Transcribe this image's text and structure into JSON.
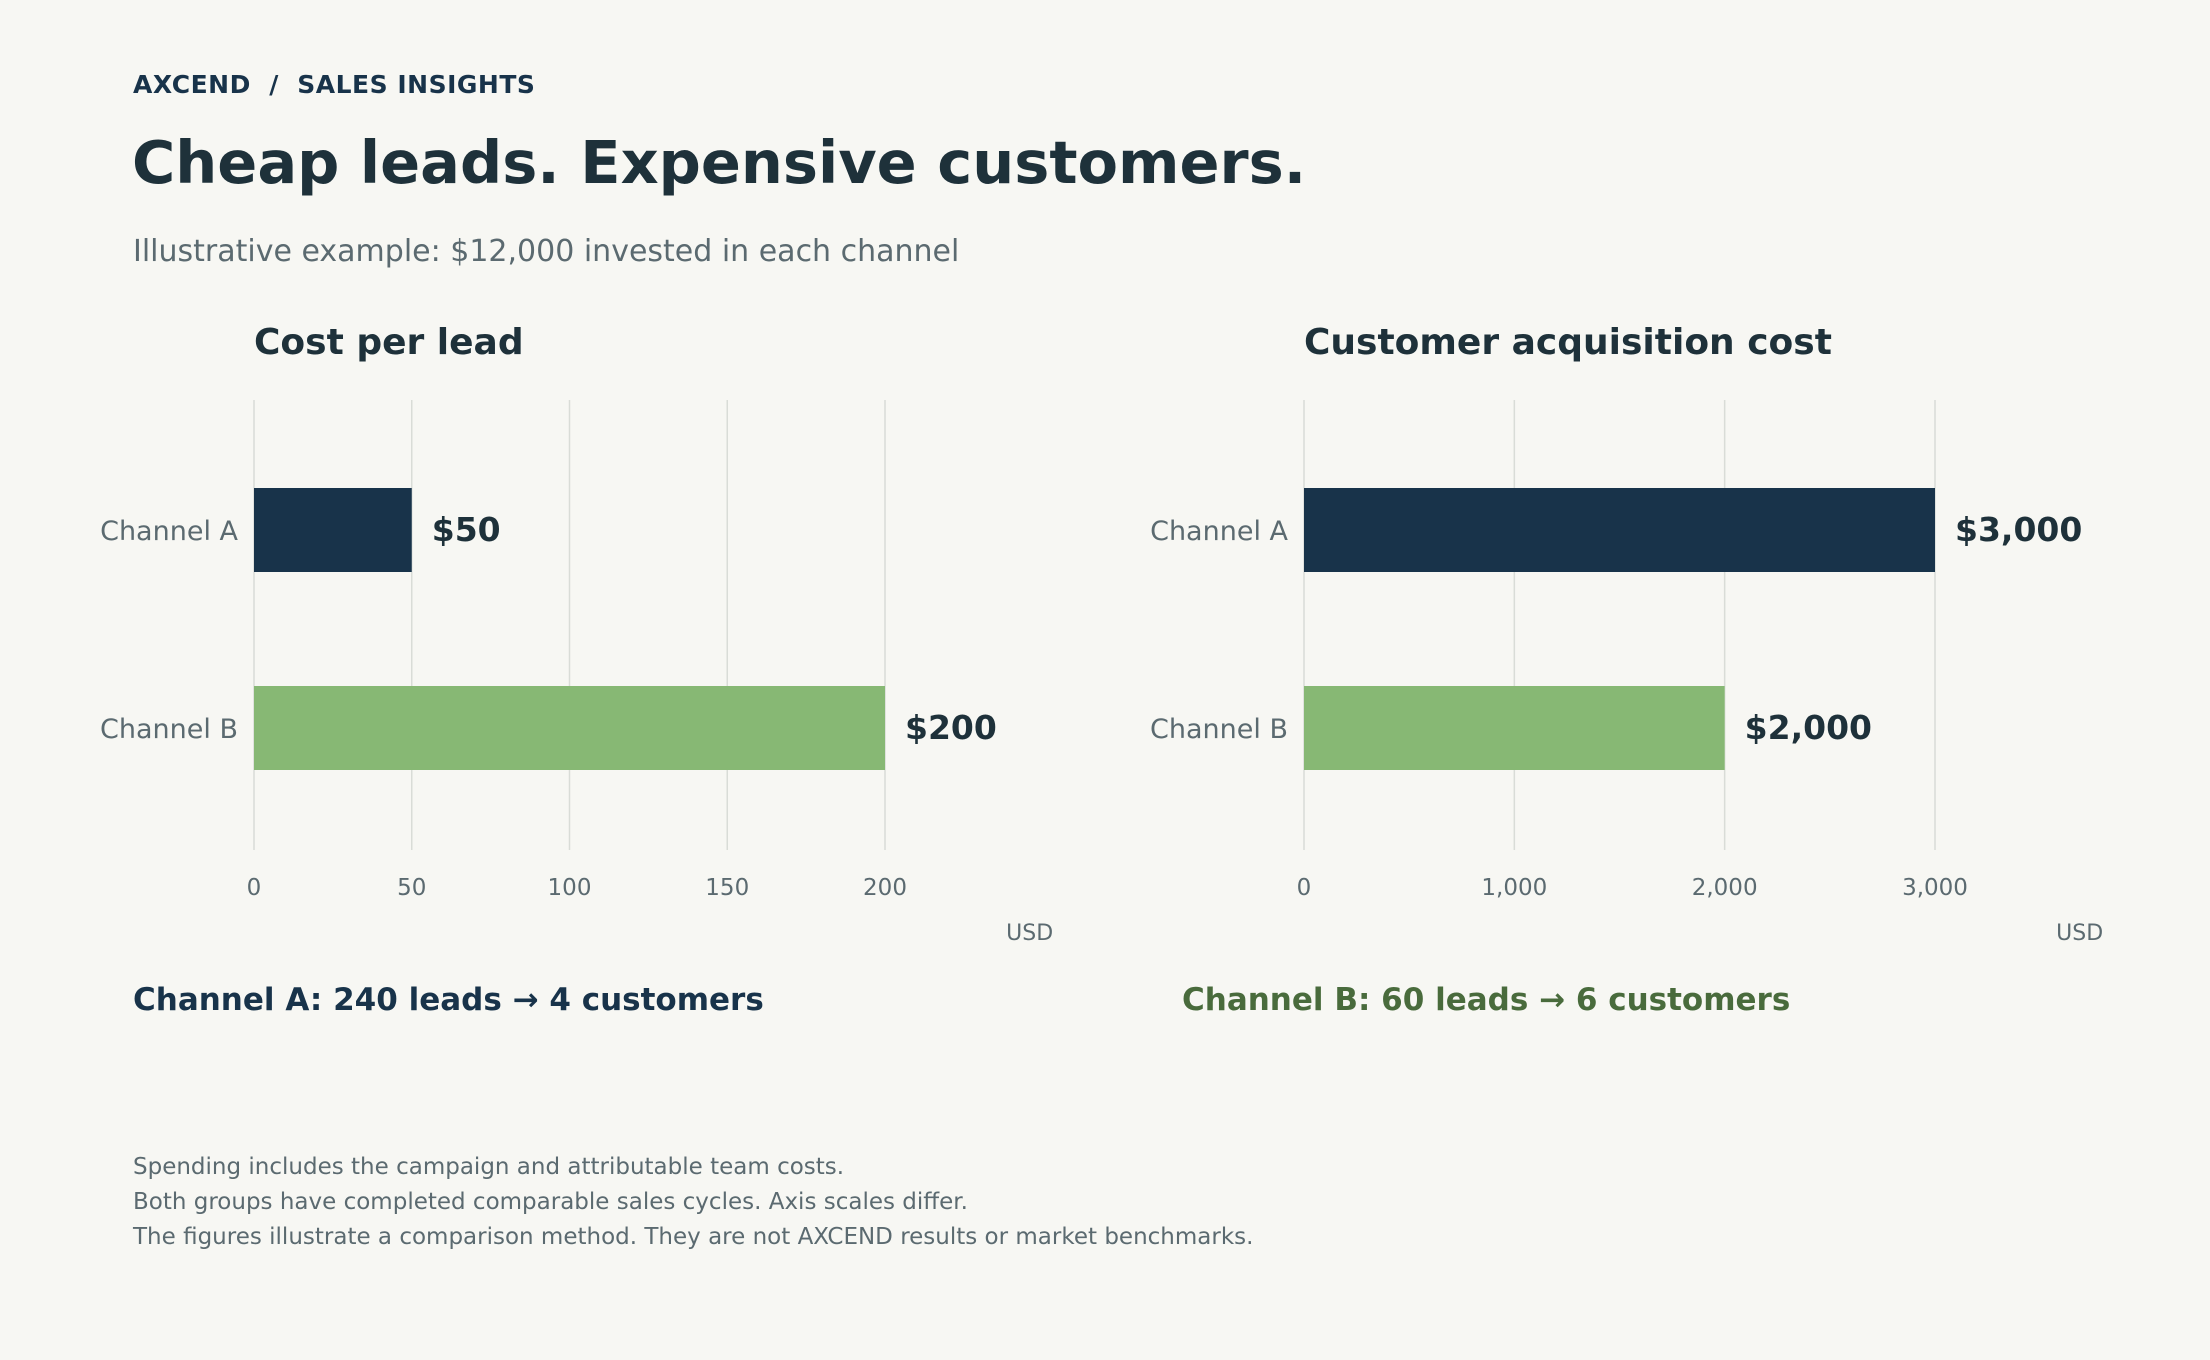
{
  "header": {
    "breadcrumb": "AXCEND  /  SALES INSIGHTS",
    "title": "Cheap leads. Expensive customers.",
    "subtitle": "Illustrative example: $12,000 invested in each channel"
  },
  "colors": {
    "channel_a": "#18334a",
    "channel_b": "#87b874",
    "summary_a": "#18334a",
    "summary_b": "#496b3c",
    "background": "#f7f7f3"
  },
  "chart_data": [
    {
      "type": "bar",
      "orientation": "horizontal",
      "title": "Cost per lead",
      "categories": [
        "Channel A",
        "Channel B"
      ],
      "values": [
        50,
        200
      ],
      "value_labels": [
        "$50",
        "$200"
      ],
      "ticks": [
        "0",
        "50",
        "100",
        "150",
        "200"
      ],
      "tick_values": [
        0,
        50,
        100,
        150,
        200
      ],
      "xlabel": "USD",
      "xlim": [
        0,
        240
      ],
      "grid": true
    },
    {
      "type": "bar",
      "orientation": "horizontal",
      "title": "Customer acquisition cost",
      "categories": [
        "Channel A",
        "Channel B"
      ],
      "values": [
        3000,
        2000
      ],
      "value_labels": [
        "$3,000",
        "$2,000"
      ],
      "ticks": [
        "0",
        "1,000",
        "2,000",
        "3,000"
      ],
      "tick_values": [
        0,
        1000,
        2000,
        3000
      ],
      "xlabel": "USD",
      "xlim": [
        0,
        3600
      ],
      "grid": true
    }
  ],
  "summary": {
    "channel_a": "Channel A: 240 leads → 4 customers",
    "channel_b": "Channel B: 60 leads → 6 customers"
  },
  "footnotes": [
    "Spending includes the campaign and attributable team costs.",
    "Both groups have completed comparable sales cycles. Axis scales differ.",
    "The figures illustrate a comparison method. They are not AXCEND results or market benchmarks."
  ]
}
